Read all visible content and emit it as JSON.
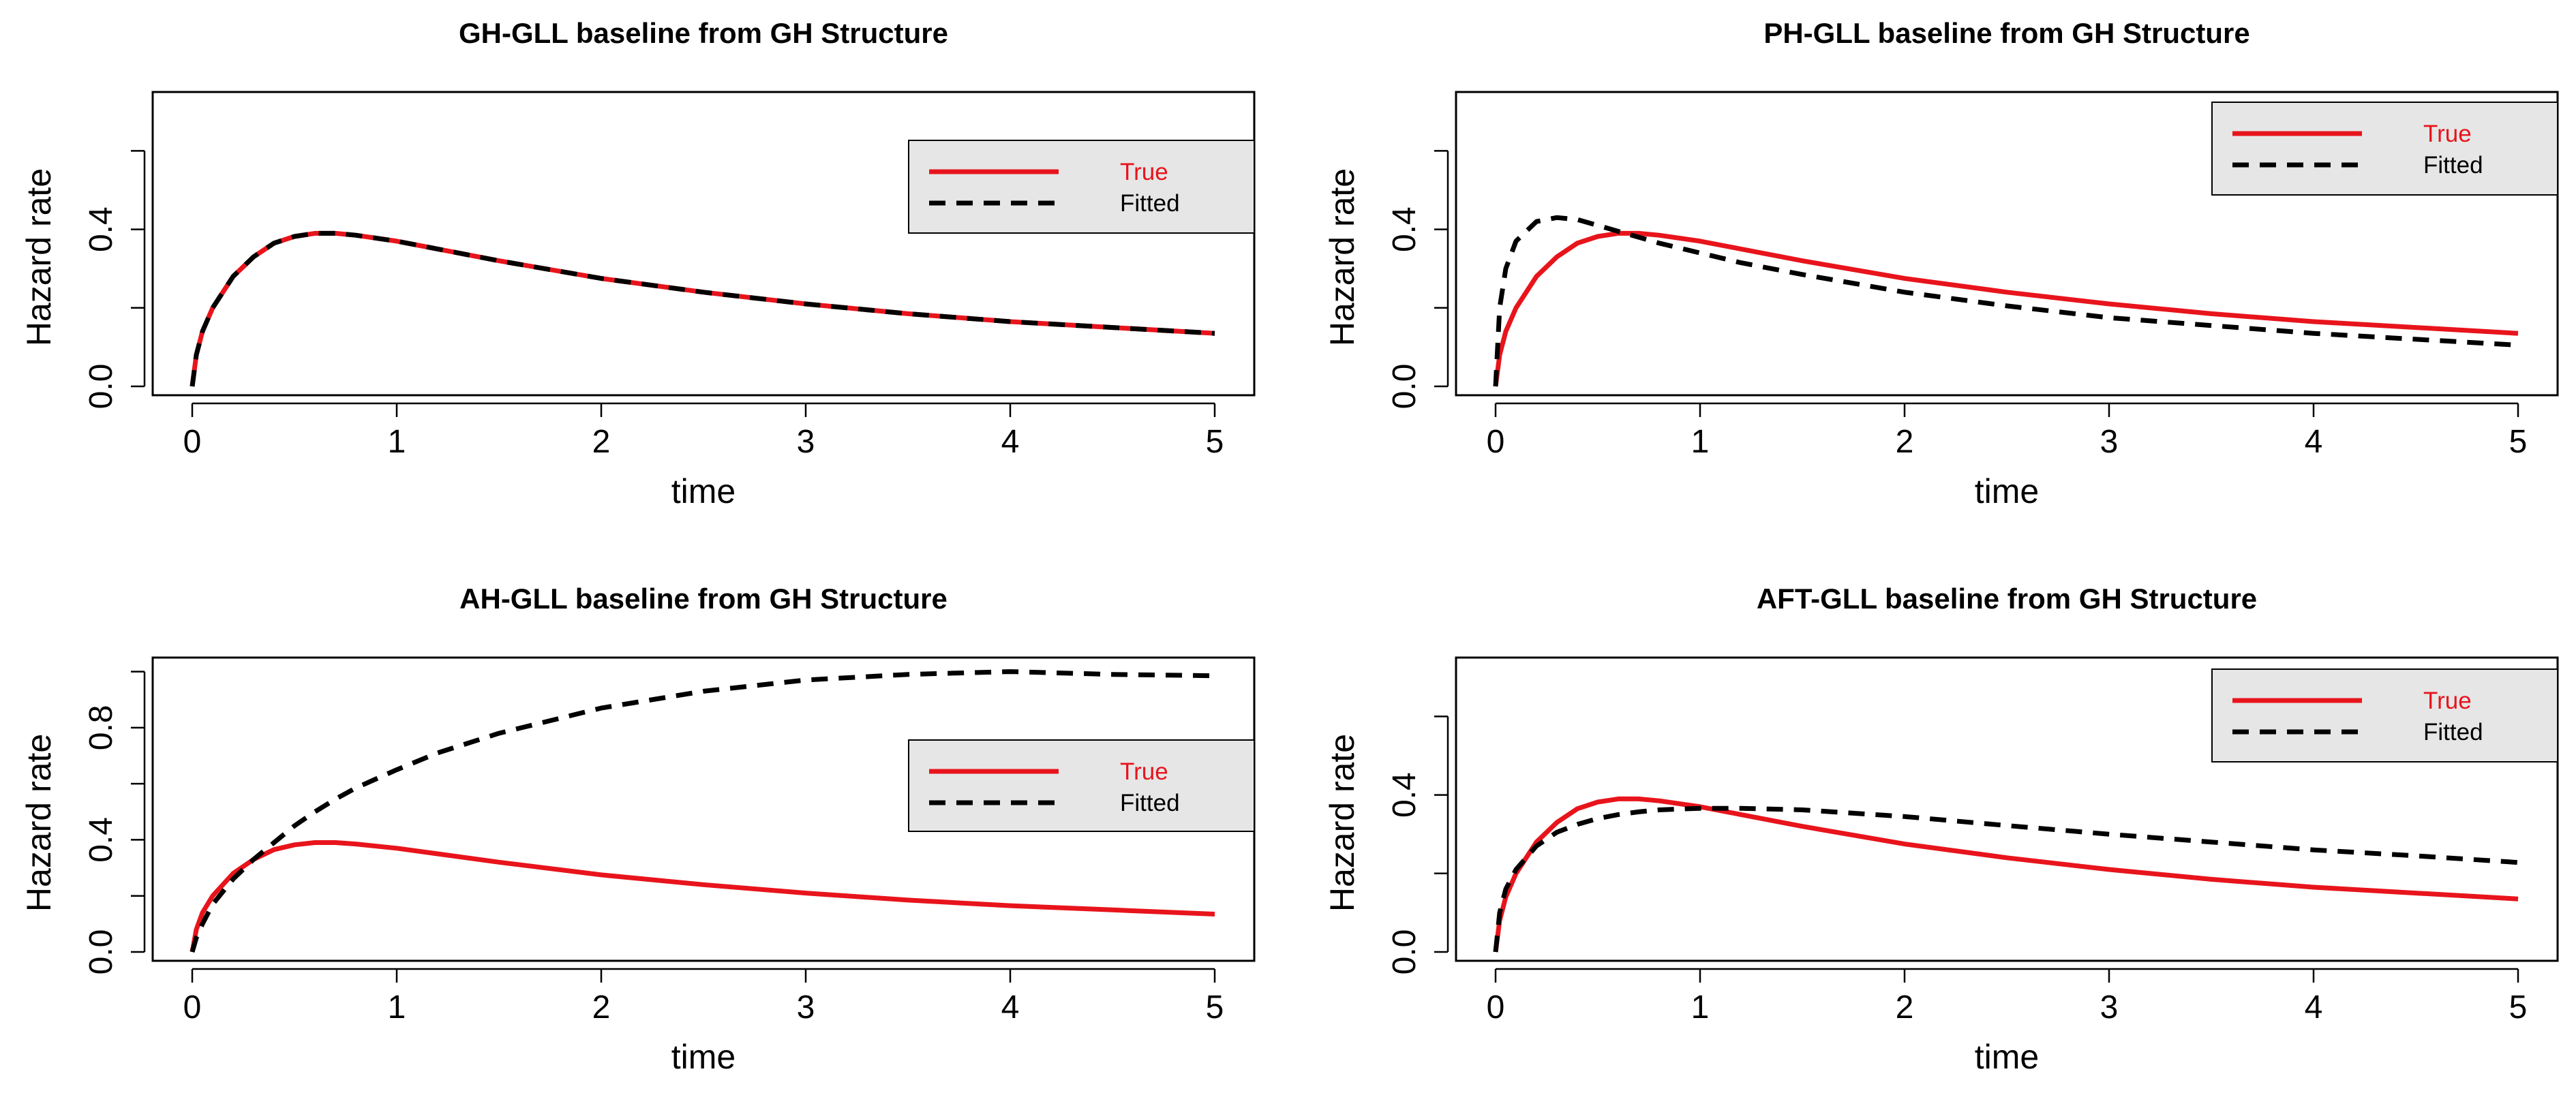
{
  "colors": {
    "true_series": "#e8141c",
    "fitted_series": "#000000",
    "legend_background": "#e6e6e6",
    "axis": "#000000"
  },
  "chart_data": [
    {
      "type": "line",
      "title": "GH-GLL baseline from GH Structure",
      "xlabel": "time",
      "ylabel": "Hazard rate",
      "xlim": [
        0,
        5
      ],
      "ylim": [
        0,
        0.75
      ],
      "xticks": [
        0,
        1,
        2,
        3,
        4,
        5
      ],
      "xtick_labels": [
        "0",
        "1",
        "2",
        "3",
        "4",
        "5"
      ],
      "yticks": [
        0,
        0.2,
        0.4,
        0.6
      ],
      "ytick_labels": [
        "0.0",
        "",
        "0.4",
        ""
      ],
      "legend": {
        "position": "top-right",
        "entries": [
          "True",
          "Fitted"
        ]
      },
      "x": [
        0,
        0.02,
        0.05,
        0.1,
        0.2,
        0.3,
        0.4,
        0.5,
        0.6,
        0.7,
        0.8,
        1.0,
        1.2,
        1.5,
        2.0,
        2.5,
        3.0,
        3.5,
        4.0,
        4.5,
        5.0
      ],
      "series": [
        {
          "name": "True",
          "style": "solid",
          "values": [
            0,
            0.08,
            0.14,
            0.2,
            0.28,
            0.33,
            0.365,
            0.382,
            0.39,
            0.39,
            0.385,
            0.37,
            0.35,
            0.32,
            0.275,
            0.24,
            0.21,
            0.185,
            0.165,
            0.15,
            0.135
          ]
        },
        {
          "name": "Fitted",
          "style": "dashed",
          "values": [
            0,
            0.08,
            0.14,
            0.2,
            0.28,
            0.33,
            0.365,
            0.382,
            0.39,
            0.39,
            0.385,
            0.37,
            0.35,
            0.32,
            0.275,
            0.24,
            0.21,
            0.185,
            0.165,
            0.15,
            0.135
          ]
        }
      ]
    },
    {
      "type": "line",
      "title": "PH-GLL baseline from GH Structure",
      "xlabel": "time",
      "ylabel": "Hazard rate",
      "xlim": [
        0,
        5
      ],
      "ylim": [
        0,
        0.75
      ],
      "xticks": [
        0,
        1,
        2,
        3,
        4,
        5
      ],
      "xtick_labels": [
        "0",
        "1",
        "2",
        "3",
        "4",
        "5"
      ],
      "yticks": [
        0,
        0.2,
        0.4,
        0.6
      ],
      "ytick_labels": [
        "0.0",
        "",
        "0.4",
        ""
      ],
      "legend": {
        "position": "top-right",
        "entries": [
          "True",
          "Fitted"
        ]
      },
      "x": [
        0,
        0.02,
        0.05,
        0.1,
        0.2,
        0.3,
        0.4,
        0.5,
        0.6,
        0.7,
        0.8,
        1.0,
        1.2,
        1.5,
        2.0,
        2.5,
        3.0,
        3.5,
        4.0,
        4.5,
        5.0
      ],
      "series": [
        {
          "name": "True",
          "style": "solid",
          "values": [
            0,
            0.08,
            0.14,
            0.2,
            0.28,
            0.33,
            0.365,
            0.382,
            0.39,
            0.39,
            0.385,
            0.37,
            0.35,
            0.32,
            0.275,
            0.24,
            0.21,
            0.185,
            0.165,
            0.15,
            0.135
          ]
        },
        {
          "name": "Fitted",
          "style": "dashed",
          "values": [
            0,
            0.2,
            0.3,
            0.37,
            0.42,
            0.43,
            0.425,
            0.41,
            0.395,
            0.38,
            0.365,
            0.34,
            0.315,
            0.285,
            0.24,
            0.205,
            0.175,
            0.155,
            0.135,
            0.12,
            0.105
          ]
        }
      ]
    },
    {
      "type": "line",
      "title": "AH-GLL baseline from GH Structure",
      "xlabel": "time",
      "ylabel": "Hazard rate",
      "xlim": [
        0,
        5
      ],
      "ylim": [
        0,
        1.05
      ],
      "xticks": [
        0,
        1,
        2,
        3,
        4,
        5
      ],
      "xtick_labels": [
        "0",
        "1",
        "2",
        "3",
        "4",
        "5"
      ],
      "yticks": [
        0,
        0.2,
        0.4,
        0.6,
        0.8,
        1.0
      ],
      "ytick_labels": [
        "0.0",
        "",
        "0.4",
        "",
        "0.8",
        ""
      ],
      "legend": {
        "position": "right",
        "entries": [
          "True",
          "Fitted"
        ]
      },
      "x": [
        0,
        0.02,
        0.05,
        0.1,
        0.2,
        0.3,
        0.4,
        0.5,
        0.6,
        0.7,
        0.8,
        1.0,
        1.2,
        1.5,
        2.0,
        2.5,
        3.0,
        3.5,
        4.0,
        4.5,
        5.0
      ],
      "series": [
        {
          "name": "True",
          "style": "solid",
          "values": [
            0,
            0.08,
            0.14,
            0.2,
            0.28,
            0.33,
            0.365,
            0.382,
            0.39,
            0.39,
            0.385,
            0.37,
            0.35,
            0.32,
            0.275,
            0.24,
            0.21,
            0.185,
            0.165,
            0.15,
            0.135
          ]
        },
        {
          "name": "Fitted",
          "style": "dashed",
          "values": [
            0,
            0.05,
            0.1,
            0.17,
            0.26,
            0.33,
            0.39,
            0.45,
            0.5,
            0.545,
            0.585,
            0.65,
            0.71,
            0.78,
            0.87,
            0.93,
            0.97,
            0.99,
            1.0,
            0.99,
            0.985
          ]
        }
      ]
    },
    {
      "type": "line",
      "title": "AFT-GLL baseline from GH Structure",
      "xlabel": "time",
      "ylabel": "Hazard rate",
      "xlim": [
        0,
        5
      ],
      "ylim": [
        0,
        0.75
      ],
      "xticks": [
        0,
        1,
        2,
        3,
        4,
        5
      ],
      "xtick_labels": [
        "0",
        "1",
        "2",
        "3",
        "4",
        "5"
      ],
      "yticks": [
        0,
        0.2,
        0.4,
        0.6
      ],
      "ytick_labels": [
        "0.0",
        "",
        "0.4",
        ""
      ],
      "legend": {
        "position": "top-right",
        "entries": [
          "True",
          "Fitted"
        ]
      },
      "x": [
        0,
        0.02,
        0.05,
        0.1,
        0.2,
        0.3,
        0.4,
        0.5,
        0.6,
        0.7,
        0.8,
        1.0,
        1.2,
        1.5,
        2.0,
        2.5,
        3.0,
        3.5,
        4.0,
        4.5,
        5.0
      ],
      "series": [
        {
          "name": "True",
          "style": "solid",
          "values": [
            0,
            0.08,
            0.14,
            0.2,
            0.28,
            0.33,
            0.365,
            0.382,
            0.39,
            0.39,
            0.385,
            0.37,
            0.35,
            0.32,
            0.275,
            0.24,
            0.21,
            0.185,
            0.165,
            0.15,
            0.135
          ]
        },
        {
          "name": "Fitted",
          "style": "dashed",
          "values": [
            0,
            0.1,
            0.16,
            0.21,
            0.27,
            0.305,
            0.325,
            0.34,
            0.35,
            0.357,
            0.362,
            0.366,
            0.366,
            0.362,
            0.345,
            0.322,
            0.3,
            0.28,
            0.26,
            0.245,
            0.228
          ]
        }
      ]
    }
  ]
}
